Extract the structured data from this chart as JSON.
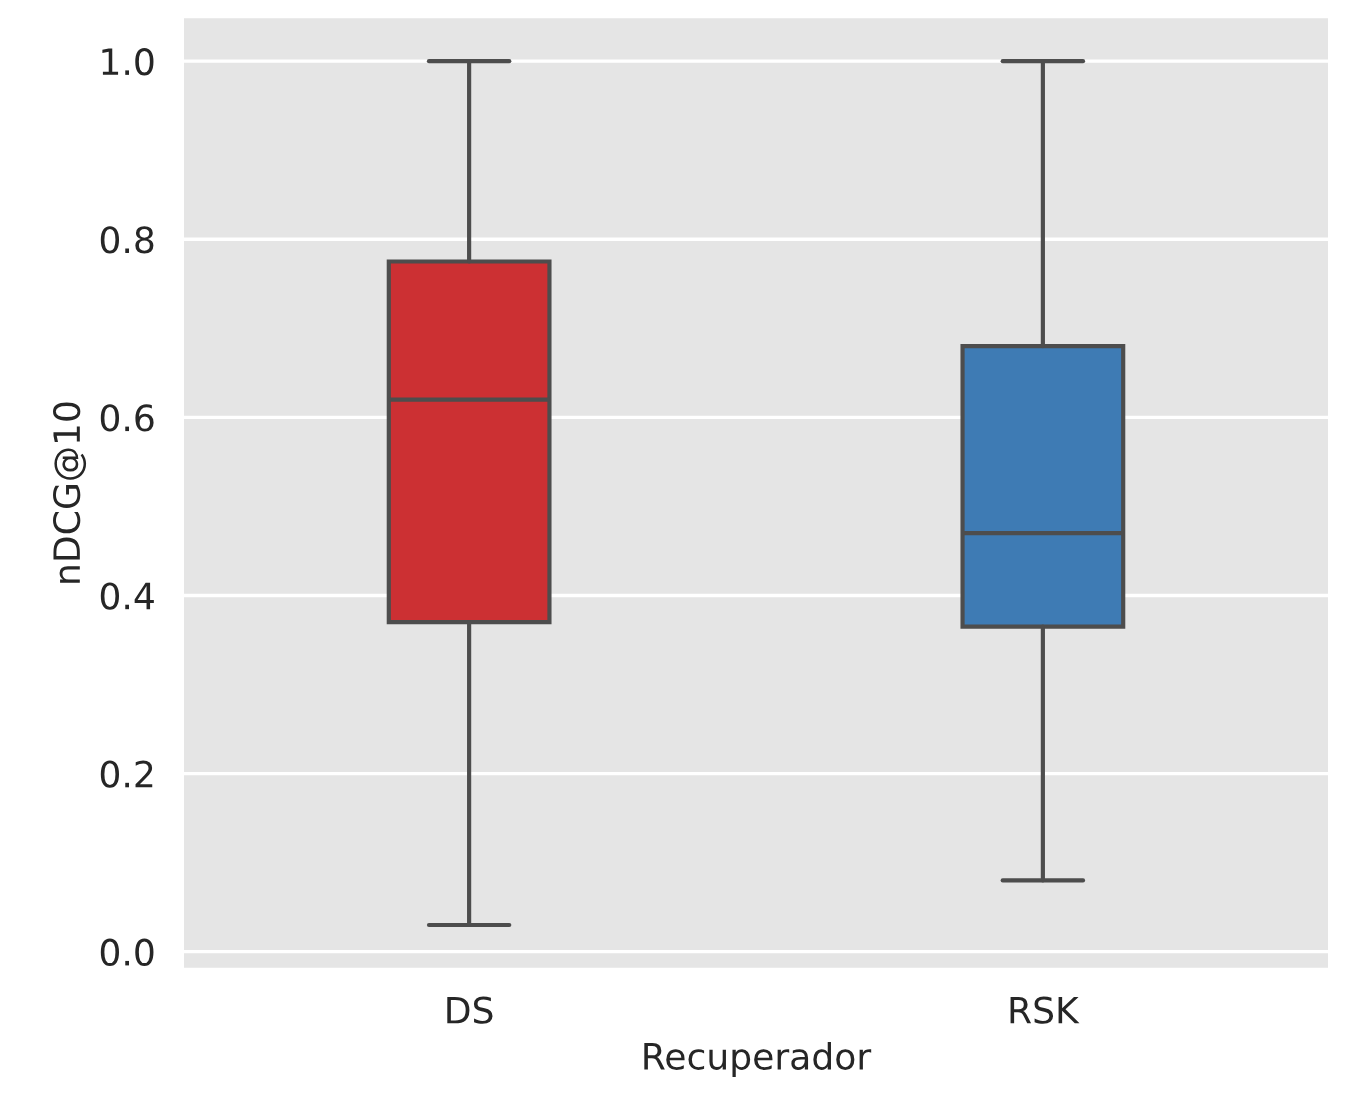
{
  "chart_data": {
    "type": "box",
    "xlabel": "Recuperador",
    "ylabel": "nDCG@10",
    "categories": [
      "DS",
      "RSK"
    ],
    "series": [
      {
        "color": "#cc3033",
        "boxes": [
          {
            "low": 0.03,
            "q1": 0.37,
            "median": 0.62,
            "q3": 0.775,
            "high": 1.0
          },
          null
        ]
      },
      {
        "color": "#3e7bb4",
        "boxes": [
          null,
          {
            "low": 0.08,
            "q1": 0.365,
            "median": 0.47,
            "q3": 0.68,
            "high": 1.0
          }
        ]
      }
    ],
    "ylim": [
      -0.02,
      1.05
    ],
    "yticks": [
      {
        "value": 0,
        "label": "0.0"
      },
      0.2,
      0.4,
      0.6,
      0.8,
      {
        "value": 1,
        "label": "1.0"
      }
    ],
    "grid": "y"
  }
}
